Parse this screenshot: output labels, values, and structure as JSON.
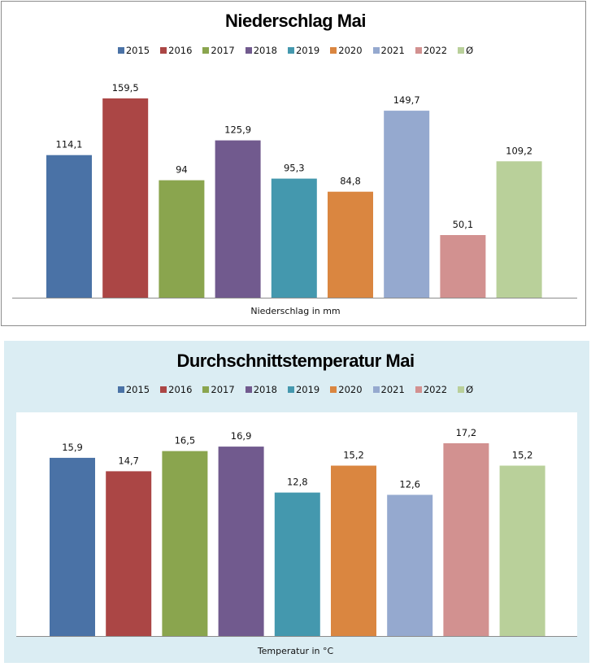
{
  "chart_data": [
    {
      "type": "bar",
      "title": "Niederschlag Mai",
      "xlabel": "Niederschlag in mm",
      "ylabel": "",
      "categories": [
        "2015",
        "2016",
        "2017",
        "2018",
        "2019",
        "2020",
        "2021",
        "2022",
        "Ø"
      ],
      "values": [
        114.1,
        159.5,
        94,
        125.9,
        95.3,
        84.8,
        149.7,
        50.1,
        109.2
      ],
      "data_labels": [
        "114,1",
        "159,5",
        "94",
        "125,9",
        "95,3",
        "84,8",
        "149,7",
        "50,1",
        "109,2"
      ],
      "colors": [
        "#4a72a6",
        "#ab4645",
        "#8aa54e",
        "#715a8e",
        "#4498ae",
        "#da8640",
        "#95a9cf",
        "#d29190",
        "#b9d09a"
      ],
      "ylim": [
        0,
        160
      ],
      "grid": false,
      "legend": "top"
    },
    {
      "type": "bar",
      "title": "Durchschnittstemperatur Mai",
      "xlabel": "Temperatur in °C",
      "ylabel": "",
      "categories": [
        "2015",
        "2016",
        "2017",
        "2018",
        "2019",
        "2020",
        "2021",
        "2022",
        "Ø"
      ],
      "values": [
        15.9,
        14.7,
        16.5,
        16.9,
        12.8,
        15.2,
        12.6,
        17.2,
        15.2
      ],
      "data_labels": [
        "15,9",
        "14,7",
        "16,5",
        "16,9",
        "12,8",
        "15,2",
        "12,6",
        "17,2",
        "15,2"
      ],
      "colors": [
        "#4a72a6",
        "#ab4645",
        "#8aa54e",
        "#715a8e",
        "#4498ae",
        "#da8640",
        "#95a9cf",
        "#d29190",
        "#b9d09a"
      ],
      "ylim": [
        0,
        17.2
      ],
      "grid": false,
      "legend": "top"
    }
  ]
}
